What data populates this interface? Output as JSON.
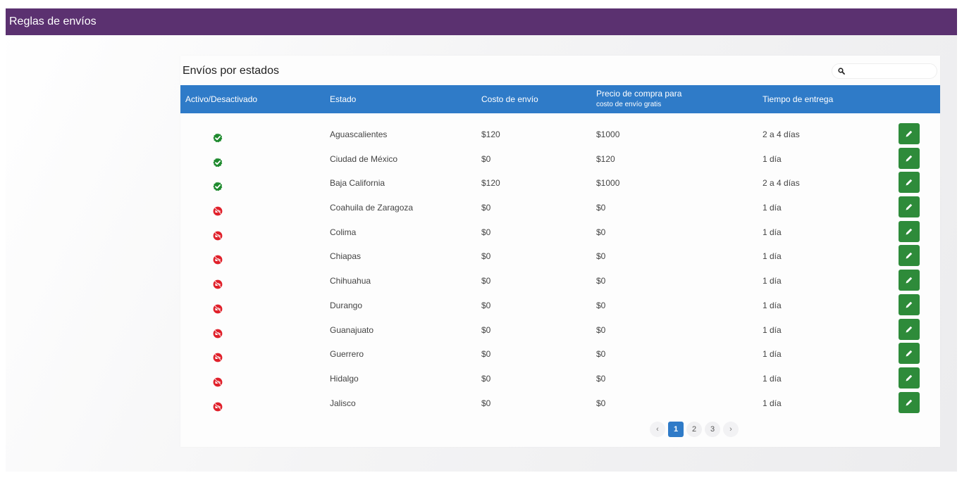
{
  "header": {
    "title": "Reglas de envíos"
  },
  "card": {
    "title": "Envíos por estados"
  },
  "search": {
    "placeholder": "",
    "value": ""
  },
  "columns": {
    "active": "Activo/Desactivado",
    "state": "Estado",
    "cost": "Costo de envío",
    "free_line1": "Precio de compra para",
    "free_line2": "costo de envío gratis",
    "time": "Tiempo de entrega"
  },
  "colors": {
    "header_bg": "#5b3170",
    "table_head": "#2f7bc8",
    "active": "#1e8a2e",
    "inactive": "#e0202a",
    "edit": "#2e8b3a"
  },
  "icons": {
    "active": "check-badge-icon",
    "inactive": "no-truck-icon",
    "edit": "pencil-icon",
    "search": "search-icon"
  },
  "rows": [
    {
      "active": true,
      "state": "Aguascalientes",
      "cost": "$120",
      "free": "$1000",
      "time": "2 a 4 días"
    },
    {
      "active": true,
      "state": "Ciudad de México",
      "cost": "$0",
      "free": "$120",
      "time": "1 día"
    },
    {
      "active": true,
      "state": "Baja California",
      "cost": "$120",
      "free": "$1000",
      "time": "2 a 4 días"
    },
    {
      "active": false,
      "state": "Coahuila de Zaragoza",
      "cost": "$0",
      "free": "$0",
      "time": "1 día"
    },
    {
      "active": false,
      "state": "Colima",
      "cost": "$0",
      "free": "$0",
      "time": "1 día"
    },
    {
      "active": false,
      "state": "Chiapas",
      "cost": "$0",
      "free": "$0",
      "time": "1 día"
    },
    {
      "active": false,
      "state": "Chihuahua",
      "cost": "$0",
      "free": "$0",
      "time": "1 día"
    },
    {
      "active": false,
      "state": "Durango",
      "cost": "$0",
      "free": "$0",
      "time": "1 día"
    },
    {
      "active": false,
      "state": "Guanajuato",
      "cost": "$0",
      "free": "$0",
      "time": "1 día"
    },
    {
      "active": false,
      "state": "Guerrero",
      "cost": "$0",
      "free": "$0",
      "time": "1 día"
    },
    {
      "active": false,
      "state": "Hidalgo",
      "cost": "$0",
      "free": "$0",
      "time": "1 día"
    },
    {
      "active": false,
      "state": "Jalisco",
      "cost": "$0",
      "free": "$0",
      "time": "1 día"
    }
  ],
  "pagination": {
    "prev": "‹",
    "next": "›",
    "pages": [
      "1",
      "2",
      "3"
    ],
    "current": "1"
  }
}
